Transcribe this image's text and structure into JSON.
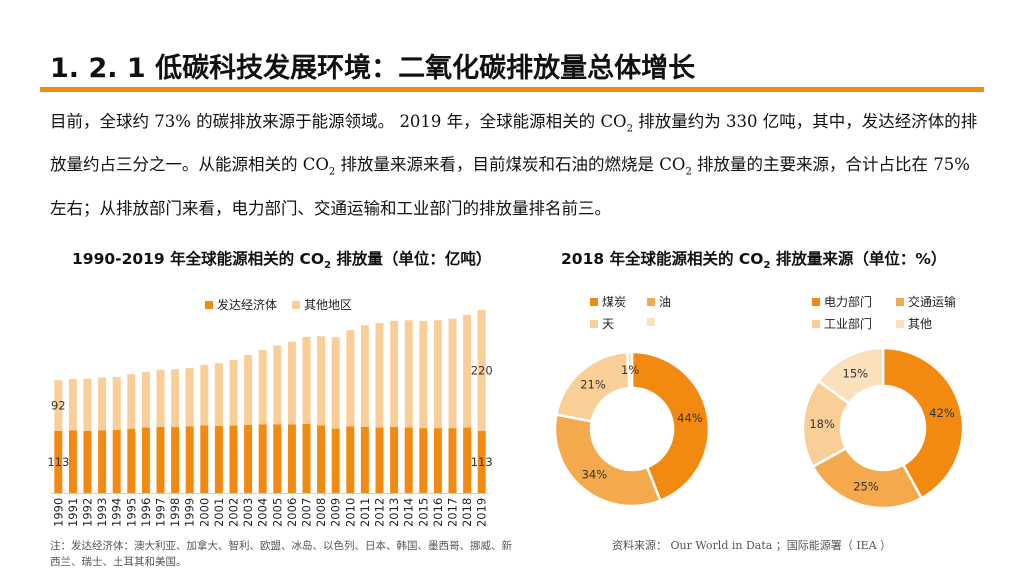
{
  "title": "1. 2. 1  低碳科技发展环境：二氧化碳排放量总体增长",
  "paragraph": {
    "p1": "目前，全球约 ",
    "p2": "73%",
    "p3": " 的碳排放来源于能源领域。 ",
    "p4": "2019",
    "p5": " 年，全球能源相关的 ",
    "co2": "CO",
    "sub2": "2",
    "p6": " 排放量约为 ",
    "p7": "330",
    "p8": " 亿吨，其中，发达经济体的排放量约占三分之一。从能源相关的 ",
    "p9": " 排放量来源来看，目前煤炭和石油的燃烧是 ",
    "p10": " 排放量的主要来源，合计占比在 ",
    "p11": "75%",
    "p12": " 左右；从排放部门来看，电力部门、交通运输和工业部门的排放量排名前三。"
  },
  "left_chart_title": {
    "a": "1990-2019 年全球能源相关的 CO",
    "sub": "2",
    "b": " 排放量（单位：亿吨）"
  },
  "right_chart_title": {
    "a": "2018 年全球能源相关的 CO",
    "sub": "2",
    "b": " 排放量来源（单位：%）"
  },
  "note": "注：发达经济体：澳大利亚、加拿大、智利、欧盟、冰岛、以色列、日本、韩国、墨西哥、挪威、新西兰、瑞士、土耳其和美国。",
  "source": {
    "a": "资料来源： ",
    "b": "Our World in Data",
    "c": " ；国际能源署（ ",
    "d": "IEA",
    "e": " ）"
  },
  "colors": {
    "accent": "#f28a12",
    "light": "#f9cf97",
    "mid": "#f5a94d",
    "pale": "#fbe0bc"
  },
  "chart_data": [
    {
      "type": "bar",
      "stacked": true,
      "categories": [
        "1990",
        "1991",
        "1992",
        "1993",
        "1994",
        "1995",
        "1996",
        "1997",
        "1998",
        "1999",
        "2000",
        "2001",
        "2002",
        "2003",
        "2004",
        "2005",
        "2006",
        "2007",
        "2008",
        "2009",
        "2010",
        "2011",
        "2012",
        "2013",
        "2014",
        "2015",
        "2016",
        "2017",
        "2018",
        "2019"
      ],
      "series": [
        {
          "name": "发达经济体",
          "values": [
            113,
            114,
            113,
            114,
            115,
            117,
            119,
            120,
            120,
            121,
            123,
            122,
            123,
            124,
            125,
            125,
            125,
            126,
            123,
            117,
            121,
            120,
            119,
            120,
            119,
            118,
            118,
            118,
            119,
            113
          ]
        },
        {
          "name": "其他地区",
          "values": [
            92,
            93,
            95,
            96,
            96,
            99,
            101,
            104,
            105,
            106,
            110,
            114,
            119,
            127,
            135,
            143,
            150,
            158,
            162,
            166,
            175,
            185,
            190,
            193,
            195,
            195,
            196,
            199,
            205,
            220
          ]
        }
      ],
      "data_labels": [
        {
          "series": "发达经济体",
          "category": "1990",
          "text": "113"
        },
        {
          "series": "其他地区",
          "category": "1990",
          "text": "92"
        },
        {
          "series": "发达经济体",
          "category": "2019",
          "text": "113"
        },
        {
          "series": "其他地区",
          "category": "2019",
          "text": "220"
        }
      ],
      "ylim": [
        0,
        400
      ],
      "legend": "top"
    },
    {
      "type": "pie",
      "donut": true,
      "labels": [
        "煤炭",
        "油",
        "天",
        ""
      ],
      "values": [
        44,
        34,
        21,
        1
      ],
      "value_labels": [
        "44%",
        "34%",
        "21%",
        "1%"
      ],
      "legend": "top"
    },
    {
      "type": "pie",
      "donut": true,
      "labels": [
        "电力部门",
        "交通运输",
        "工业部门",
        "其他"
      ],
      "values": [
        42,
        25,
        18,
        15
      ],
      "value_labels": [
        "42%",
        "25%",
        "18%",
        "15%"
      ],
      "legend": "top"
    }
  ]
}
